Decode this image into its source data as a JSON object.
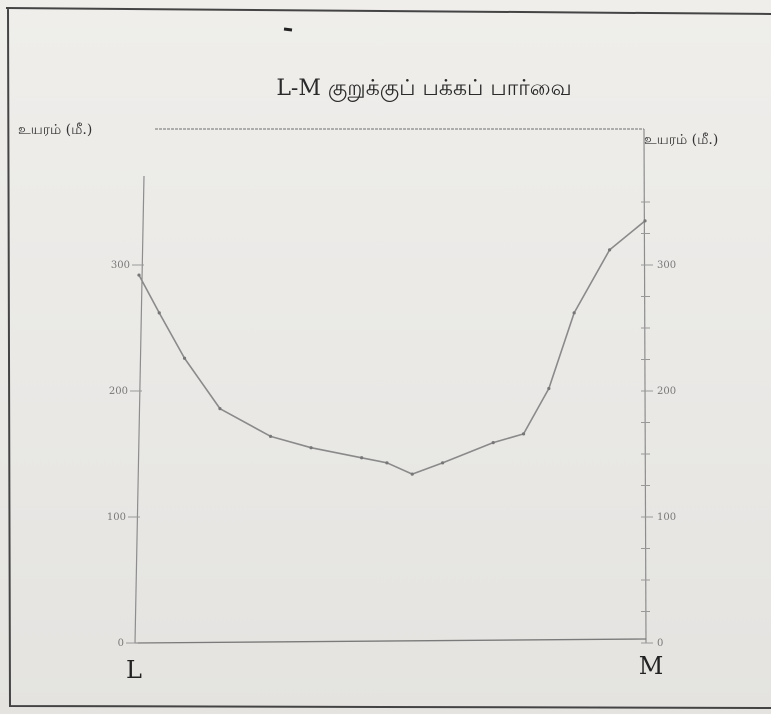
{
  "chart_data": {
    "type": "line",
    "title": "L-M குறுக்குப் பக்கப் பார்வை",
    "ylabel_left": "உயரம் (மீ.)",
    "ylabel_right": "உயரம் (மீ.)",
    "x_start_label": "L",
    "x_end_label": "M",
    "left_axis": {
      "ticks": [
        0,
        100,
        200,
        300
      ],
      "tick_labels": [
        "0",
        "100",
        "200",
        "300"
      ],
      "ylim": [
        0,
        400
      ]
    },
    "right_axis": {
      "ticks": [
        0,
        100,
        200,
        300
      ],
      "tick_labels": [
        "0",
        "100",
        "200",
        "300"
      ],
      "ylim": [
        0,
        400
      ]
    },
    "grid": false,
    "series": [
      {
        "x": [
          0,
          0.04,
          0.09,
          0.16,
          0.26,
          0.34,
          0.44,
          0.49,
          0.54,
          0.6,
          0.7,
          0.76,
          0.81,
          0.86,
          0.93,
          1.0
        ],
        "values": [
          292,
          262,
          226,
          186,
          164,
          155,
          147,
          143,
          134,
          143,
          159,
          166,
          202,
          262,
          312,
          335
        ]
      }
    ]
  }
}
